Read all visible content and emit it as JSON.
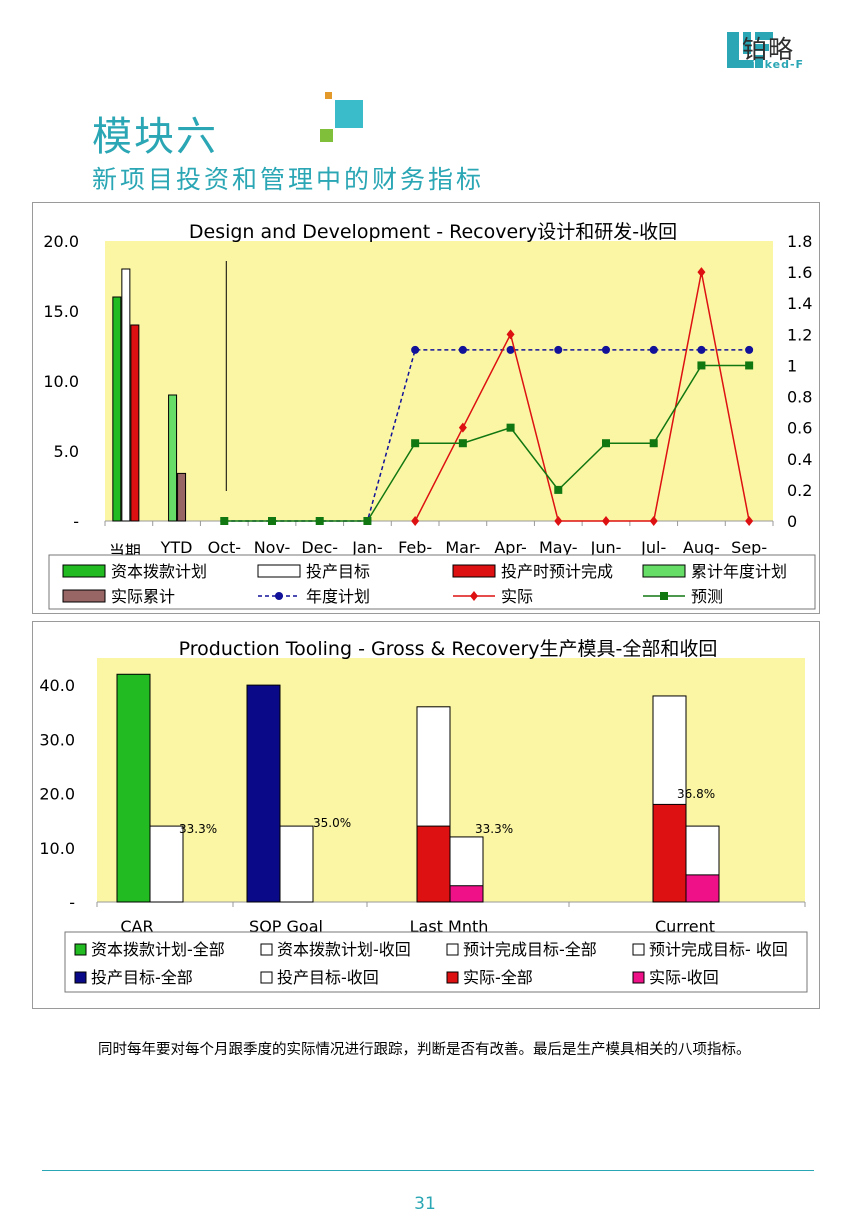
{
  "brand": {
    "name_cn": "铂略",
    "name_en": "Linked-F"
  },
  "heading": {
    "title": "模块六",
    "subtitle": "新项目投资和管理中的财务指标"
  },
  "chart_data": [
    {
      "type": "bar+line",
      "title": "Design and Development - Recovery设计和研发-收回",
      "categories": [
        "当期",
        "YTD",
        "Oct-",
        "Nov-",
        "Dec-",
        "Jan-",
        "Feb-",
        "Mar-",
        "Apr-",
        "May-",
        "Jun-",
        "Jul-",
        "Aug-",
        "Sep-"
      ],
      "left_axis": {
        "ylim": [
          0,
          20
        ],
        "ticks": [
          "-",
          "5.0",
          "10.0",
          "15.0",
          "20.0"
        ]
      },
      "right_axis": {
        "ylim": [
          0,
          1.8
        ],
        "ticks": [
          "0",
          "0.2",
          "0.4",
          "0.6",
          "0.8",
          "1",
          "1.2",
          "1.4",
          "1.6",
          "1.8"
        ]
      },
      "bar_series": [
        {
          "name": "资本拨款计划",
          "color": "#22bb22",
          "values": [
            16,
            null
          ]
        },
        {
          "name": "投产目标",
          "color": "#ffffff",
          "values": [
            18,
            null
          ]
        },
        {
          "name": "投产时预计完成",
          "color": "#dd1111",
          "values": [
            14,
            null
          ]
        },
        {
          "name": "累计年度计划",
          "color": "#66dd66",
          "values": [
            null,
            9
          ]
        },
        {
          "name": "实际累计",
          "color": "#996666",
          "values": [
            null,
            3.4
          ]
        }
      ],
      "line_series": [
        {
          "name": "年度计划",
          "color": "#111199",
          "dashed": true,
          "marker": "circle",
          "values": [
            null,
            null,
            0,
            0,
            0,
            0,
            1.1,
            1.1,
            1.1,
            1.1,
            1.1,
            1.1,
            1.1,
            1.1
          ]
        },
        {
          "name": "实际",
          "color": "#dd1111",
          "dashed": false,
          "marker": "diamond",
          "values": [
            null,
            null,
            null,
            null,
            null,
            null,
            0,
            0.6,
            1.2,
            0,
            0,
            0,
            1.6,
            0
          ]
        },
        {
          "name": "预测",
          "color": "#117711",
          "dashed": false,
          "marker": "square",
          "values": [
            null,
            null,
            0,
            0,
            0,
            0,
            0.5,
            0.5,
            0.6,
            0.2,
            0.5,
            0.5,
            1.0,
            1.0
          ]
        }
      ],
      "legend": [
        "资本拨款计划",
        "投产目标",
        "投产时预计完成",
        "累计年度计划",
        "实际累计",
        "年度计划",
        "实际",
        "预测"
      ]
    },
    {
      "type": "bar",
      "title": "Production Tooling - Gross & Recovery生产模具-全部和收回",
      "categories": [
        "CAR",
        "SOP Goal",
        "Last Mnth",
        "Current"
      ],
      "ylim": [
        0,
        45
      ],
      "ticks": [
        "-",
        "10.0",
        "20.0",
        "30.0",
        "40.0"
      ],
      "series": [
        {
          "name": "资本拨款计划-全部",
          "color": "#22bb22",
          "values": [
            42,
            null,
            null,
            null
          ]
        },
        {
          "name": "资本拨款计划-收回",
          "color": "#ffffff",
          "values": [
            14,
            null,
            null,
            null
          ]
        },
        {
          "name": "预计完成目标-全部",
          "color": "#ffffff",
          "values": [
            null,
            null,
            36,
            38
          ]
        },
        {
          "name": "预计完成目标- 收回",
          "color": "#ffffff",
          "values": [
            null,
            null,
            12,
            14
          ]
        },
        {
          "name": "投产目标-全部",
          "color": "#0a0a88",
          "values": [
            null,
            40,
            null,
            null
          ]
        },
        {
          "name": "投产目标-收回",
          "color": "#ffffff",
          "values": [
            null,
            14,
            null,
            null
          ]
        },
        {
          "name": "实际-全部",
          "color": "#dd1111",
          "values": [
            null,
            null,
            14,
            18
          ]
        },
        {
          "name": "实际-收回",
          "color": "#ee1188",
          "values": [
            null,
            null,
            3,
            5
          ]
        }
      ],
      "annotations": [
        "33.3%",
        "35.0%",
        "33.3%",
        "36.8%"
      ],
      "legend": [
        "资本拨款计划-全部",
        "资本拨款计划-收回",
        "预计完成目标-全部",
        "预计完成目标- 收回",
        "投产目标-全部",
        "投产目标-收回",
        "实际-全部",
        "实际-收回"
      ]
    }
  ],
  "body_text": "同时每年要对每个月跟季度的实际情况进行跟踪，判断是否有改善。最后是生产模具相关的八项指标。",
  "page_number": "31"
}
